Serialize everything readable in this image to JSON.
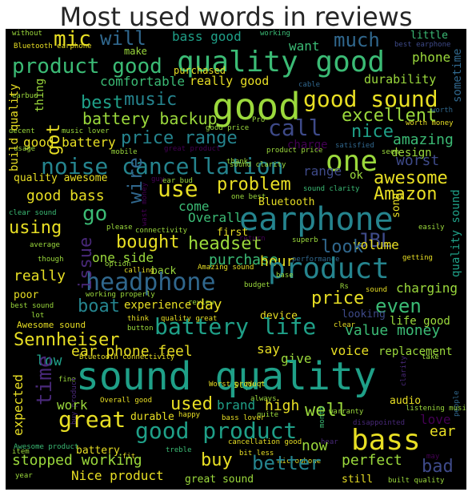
{
  "title": "Most used words in reviews",
  "words": [
    "without",
    "Bluetooth earphone",
    "bass good",
    "working",
    "little",
    "best earphone",
    "mic",
    "will",
    "much",
    "want",
    "phone",
    "product good",
    "quality good",
    "make",
    "purchased",
    "really good",
    "durability",
    "comfortable",
    "cable",
    "sometime",
    "earbud",
    "best",
    "music",
    "good",
    "good sound",
    "battery backup",
    "excellent",
    "Pro",
    "worth",
    "decent",
    "music lover",
    "good price",
    "worth money",
    "call",
    "nice",
    "amazing",
    "good battery",
    "usage",
    "mobile",
    "great product",
    "product price",
    "satisfied",
    "seem",
    "design",
    "price range",
    "charge",
    "one",
    "noise cancellation",
    "worst",
    "quality awesome",
    "range",
    "awesome",
    "guy",
    "ear bud",
    "use",
    "problem",
    "ok",
    "Amazon",
    "good bass",
    "wire",
    "come",
    "one best",
    "Bluetooth",
    "sound clarity",
    "go",
    "Overall",
    "earphone",
    "clear sound",
    "please",
    "connectivity",
    "first",
    "easily",
    "using",
    "song",
    "headset",
    "JBL",
    "bought",
    "average",
    "return",
    "superb",
    "volume",
    "look",
    "though",
    "option",
    "one side",
    "back",
    "purchase",
    "hour",
    "performance",
    "getting",
    "calling",
    "Amazing sound",
    "headphone",
    "product",
    "issue",
    "base",
    "really",
    "budget",
    "poor",
    "working properly",
    "review",
    "Rs",
    "sound",
    "charging",
    "boat",
    "price",
    "best sound",
    "experience",
    "day",
    "even",
    "lot",
    "device",
    "think",
    "quality great",
    "Awesome sound",
    "button",
    "looking",
    "life good",
    "battery life",
    "clear",
    "value money",
    "Sennheiser",
    "say",
    "give",
    "Bluetooth connectivity",
    "voice",
    "replacement",
    "ear phone feel",
    "take",
    "low",
    "super",
    "time",
    "sound quality",
    "always",
    "Worst product",
    "quite",
    "fine",
    "clarity",
    "expected",
    "buy product",
    "Overall good",
    "audio",
    "people",
    "work",
    "brand",
    "used",
    "high",
    "well",
    "great",
    "warranty",
    "listening music",
    "durable",
    "happy",
    "bass lover",
    "month",
    "love",
    "good product",
    "disappointed",
    "ear",
    "item",
    "bass",
    "battery",
    "treble",
    "cancellation good",
    "hear",
    "Awesome product",
    "fit",
    "bit less",
    "microphone",
    "may",
    "stopped working",
    "buy",
    "now",
    "perfect",
    "year",
    "Nice product",
    "great sound",
    "better",
    "bad",
    "still",
    "built quality",
    "build quality",
    "thing",
    "got",
    "quality sound",
    "wast money",
    "thank",
    "sound clarity"
  ],
  "colors": {
    "yellow": "#e8df24",
    "lime": "#9bd93c",
    "green": "#3bbb75",
    "teal": "#1fa088",
    "cyan": "#25848e",
    "blue": "#30678d",
    "indigo": "#3e4a89",
    "purple": "#482878",
    "dark": "#440154",
    "background": "#000000"
  }
}
